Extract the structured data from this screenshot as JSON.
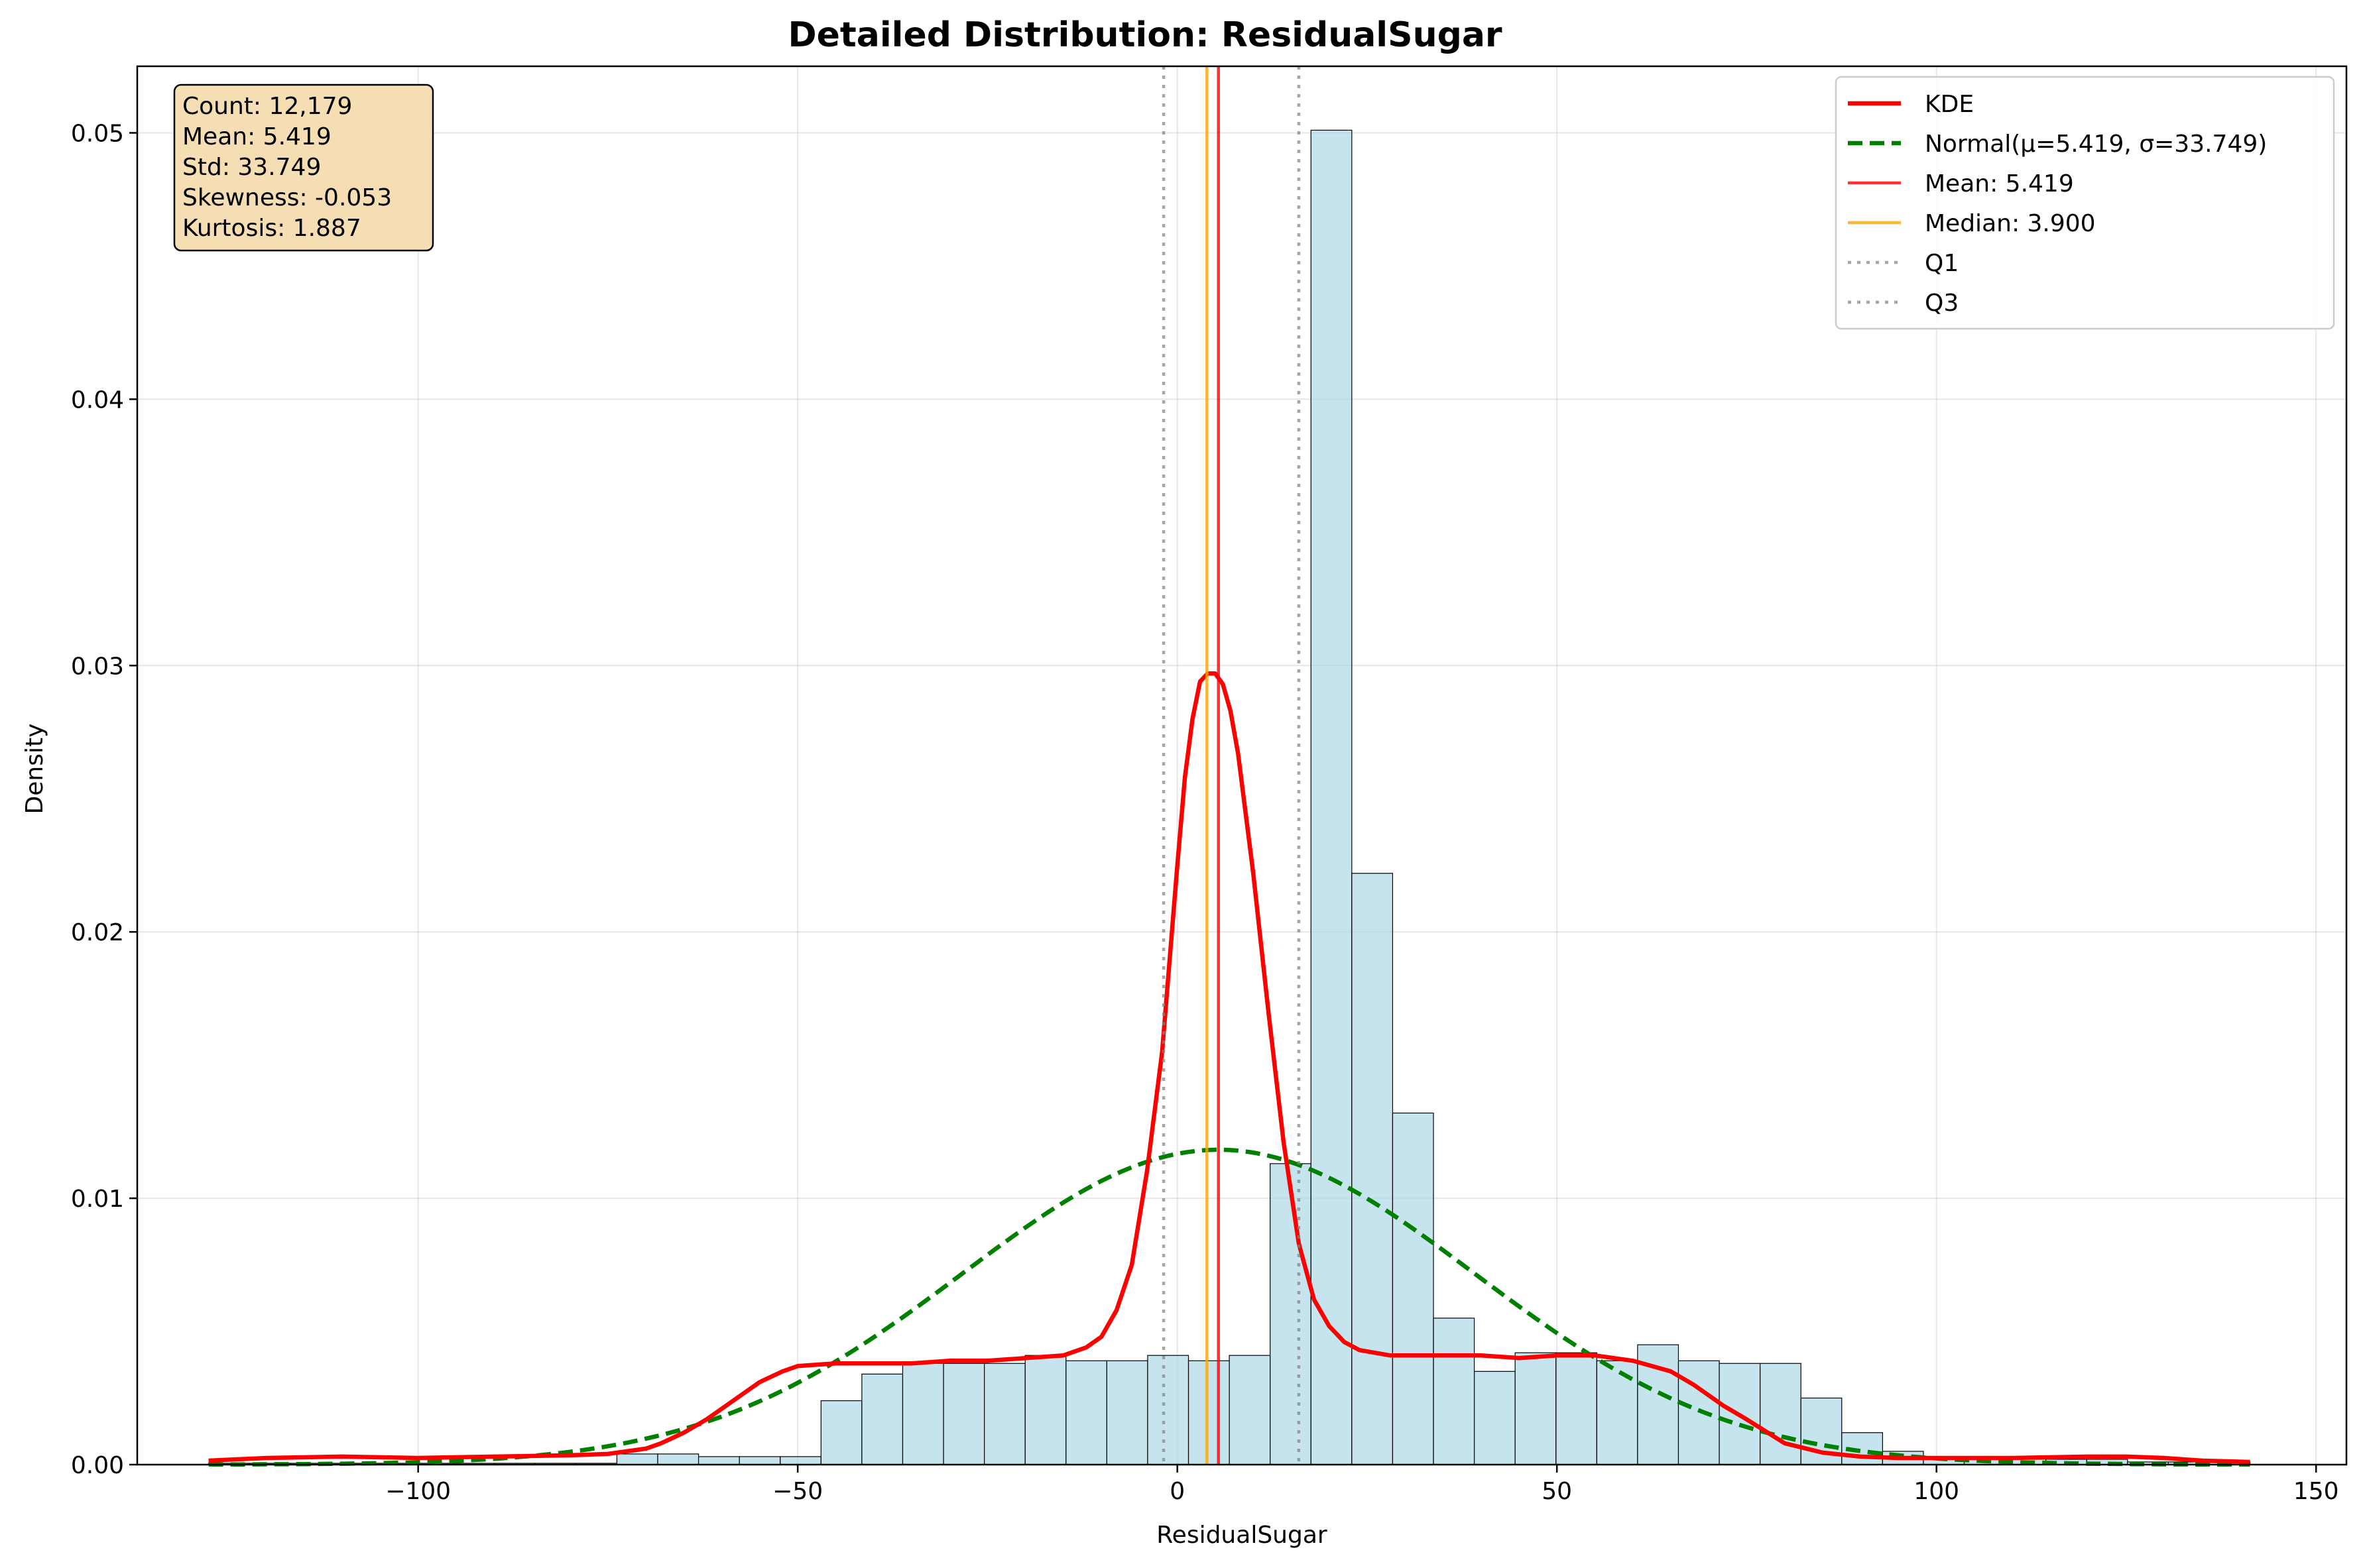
{
  "chart_data": {
    "type": "bar",
    "title": "Detailed Distribution: ResidualSugar",
    "xlabel": "ResidualSugar",
    "ylabel": "Density",
    "xlim": [
      -137,
      154
    ],
    "ylim": [
      0,
      0.0525
    ],
    "grid": true,
    "xticks": [
      {
        "value": -100,
        "label": "−100"
      },
      {
        "value": -50,
        "label": "−50"
      },
      {
        "value": 0,
        "label": "0"
      },
      {
        "value": 50,
        "label": "50"
      },
      {
        "value": 100,
        "label": "100"
      },
      {
        "value": 150,
        "label": "150"
      }
    ],
    "yticks": [
      {
        "value": 0,
        "label": "0.00"
      },
      {
        "value": 0.01,
        "label": "0.01"
      },
      {
        "value": 0.02,
        "label": "0.02"
      },
      {
        "value": 0.03,
        "label": "0.03"
      },
      {
        "value": 0.04,
        "label": "0.04"
      },
      {
        "value": 0.05,
        "label": "0.05"
      }
    ],
    "histogram": {
      "bin_start": -127.6,
      "bin_width": 5.378,
      "values": [
        5e-05,
        5e-05,
        5e-05,
        5e-05,
        5e-05,
        5e-05,
        5e-05,
        5e-05,
        5e-05,
        5e-05,
        0.0004,
        0.0004,
        0.0003,
        0.0003,
        0.0003,
        0.0024,
        0.0034,
        0.0038,
        0.0038,
        0.0038,
        0.0041,
        0.0039,
        0.0039,
        0.0041,
        0.0039,
        0.0041,
        0.0113,
        0.0501,
        0.0222,
        0.0132,
        0.0055,
        0.0035,
        0.0042,
        0.0042,
        0.0039,
        0.0045,
        0.0039,
        0.0038,
        0.0038,
        0.0025,
        0.0012,
        0.0005,
        0.0003,
        0.0002,
        0.0002,
        0.0002,
        0.0002,
        0.0001,
        0.0001,
        0.0001
      ],
      "fill": "#add8e6",
      "edge": "#000000"
    },
    "series": [
      {
        "name": "KDE",
        "color": "#ff0000",
        "style": "solid",
        "x": [
          -127.6,
          -120,
          -110,
          -100,
          -90,
          -80,
          -75,
          -70,
          -68,
          -65,
          -62,
          -60,
          -57,
          -55,
          -52,
          -50,
          -45,
          -40,
          -35,
          -30,
          -25,
          -20,
          -15,
          -12,
          -10,
          -8,
          -6,
          -4,
          -2,
          0,
          1,
          2,
          3,
          4,
          5,
          6,
          7,
          8,
          10,
          12,
          14,
          16,
          18,
          20,
          22,
          24,
          26,
          28,
          30,
          35,
          40,
          45,
          50,
          55,
          60,
          65,
          68,
          70,
          72,
          75,
          80,
          85,
          90,
          95,
          100,
          110,
          120,
          125,
          130,
          135,
          141.3
        ],
        "y": [
          0.00015,
          0.00025,
          0.0003,
          0.00025,
          0.0003,
          0.00035,
          0.0004,
          0.0006,
          0.0008,
          0.0012,
          0.0017,
          0.0021,
          0.0027,
          0.0031,
          0.0035,
          0.0037,
          0.0038,
          0.0038,
          0.0038,
          0.0039,
          0.0039,
          0.004,
          0.0041,
          0.0044,
          0.0048,
          0.0058,
          0.0075,
          0.011,
          0.0155,
          0.0225,
          0.0258,
          0.028,
          0.0294,
          0.0297,
          0.0297,
          0.0293,
          0.0283,
          0.0267,
          0.0222,
          0.017,
          0.0121,
          0.0083,
          0.0062,
          0.0052,
          0.0046,
          0.0043,
          0.0042,
          0.0041,
          0.0041,
          0.0041,
          0.0041,
          0.004,
          0.0041,
          0.0041,
          0.0039,
          0.0035,
          0.003,
          0.0026,
          0.0022,
          0.0017,
          0.0008,
          0.00045,
          0.0003,
          0.00025,
          0.00025,
          0.00025,
          0.0003,
          0.0003,
          0.00025,
          0.00015,
          0.0001
        ]
      },
      {
        "name": "Normal(μ=5.419, σ=33.749)",
        "color": "#008000",
        "style": "dashed",
        "mu": 5.419,
        "sigma": 33.749,
        "x_range": [
          -127.6,
          141.3
        ]
      }
    ],
    "reference_lines": [
      {
        "name": "Mean: 5.419",
        "value": 5.419,
        "color": "#ff0000",
        "style": "solid",
        "opacity": 0.8
      },
      {
        "name": "Median: 3.900",
        "value": 3.9,
        "color": "#ffa500",
        "style": "solid",
        "opacity": 0.8
      },
      {
        "name": "Q1",
        "value": -1.8,
        "color": "#808080",
        "style": "dotted",
        "opacity": 0.7
      },
      {
        "name": "Q3",
        "value": 16.0,
        "color": "#808080",
        "style": "dotted",
        "opacity": 0.7
      }
    ],
    "legend": {
      "placement": "top-right",
      "entries": [
        {
          "label": "KDE",
          "color": "#ff0000",
          "style": "solid",
          "width": "thick"
        },
        {
          "label": "Normal(μ=5.419, σ=33.749)",
          "color": "#008000",
          "style": "dashed",
          "width": "thick"
        },
        {
          "label": "Mean: 5.419",
          "color": "#ff0000",
          "style": "solid",
          "width": "thin"
        },
        {
          "label": "Median: 3.900",
          "color": "#ffa500",
          "style": "solid",
          "width": "thin"
        },
        {
          "label": "Q1",
          "color": "#808080",
          "style": "dotted",
          "width": "thin"
        },
        {
          "label": "Q3",
          "color": "#808080",
          "style": "dotted",
          "width": "thin"
        }
      ]
    },
    "stats_box": {
      "placement": "top-left",
      "background": "#f5deb3",
      "lines": [
        "Count: 12,179",
        "Mean: 5.419",
        "Std: 33.749",
        "Skewness: -0.053",
        "Kurtosis: 1.887"
      ]
    }
  }
}
